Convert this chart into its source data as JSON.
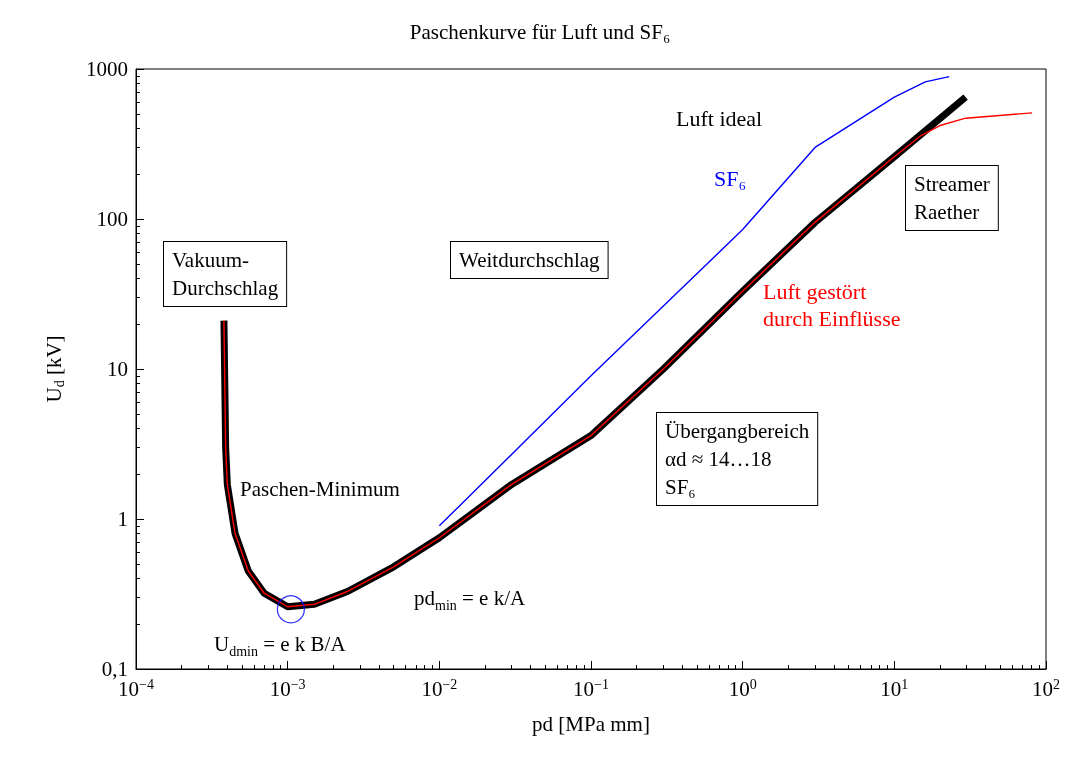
{
  "chart_data": {
    "type": "line",
    "title": "Paschenkurve für Luft und SF₆",
    "xlabel": "pd [MPa mm]",
    "ylabel": "U$_{d}$ [kV]",
    "log": "xy",
    "grid": false,
    "legend": false,
    "marker": "none",
    "line_style": "solid",
    "xlim": [
      0.0001,
      100
    ],
    "ylim": [
      0.1,
      1000
    ],
    "xticks": [
      {
        "value": 0.0001,
        "label": "10$^{−4}$"
      },
      {
        "value": 0.001,
        "label": "10$^{−3}$"
      },
      {
        "value": 0.01,
        "label": "10$^{−2}$"
      },
      {
        "value": 0.1,
        "label": "10$^{−1}$"
      },
      {
        "value": 1,
        "label": "10$^{0}$"
      },
      {
        "value": 10,
        "label": "10$^{1}$"
      },
      {
        "value": 100,
        "label": "10$^{2}$"
      }
    ],
    "yticks": [
      {
        "value": 0.1,
        "label": "0,1"
      },
      1,
      10,
      100,
      1000
    ],
    "series": [
      {
        "name": "Luft ideal",
        "color": "#000000",
        "x": [
          0.00038,
          0.000385,
          0.00039,
          0.0004,
          0.00045,
          0.00055,
          0.0007,
          0.001,
          0.0015,
          0.0025,
          0.005,
          0.01,
          0.03,
          0.1,
          0.3,
          1,
          3,
          10,
          29.5
        ],
        "values": [
          21,
          8,
          3,
          1.7,
          0.8,
          0.45,
          0.32,
          0.26,
          0.27,
          0.33,
          0.48,
          0.75,
          1.7,
          3.6,
          10,
          33,
          95,
          260,
          650
        ]
      },
      {
        "name": "Luft gestört\ndurch Einflüsse",
        "color": "#ff0000",
        "x": [
          0.00038,
          0.000385,
          0.00039,
          0.0004,
          0.00045,
          0.00055,
          0.0007,
          0.001,
          0.0015,
          0.0025,
          0.005,
          0.01,
          0.03,
          0.1,
          0.3,
          1,
          3,
          10,
          15,
          20,
          29.5,
          81
        ],
        "values": [
          21,
          8,
          3,
          1.7,
          0.8,
          0.45,
          0.32,
          0.26,
          0.27,
          0.33,
          0.48,
          0.75,
          1.7,
          3.6,
          10,
          33,
          95,
          260,
          360,
          420,
          470,
          510
        ]
      },
      {
        "name": "SF₆",
        "color": "#0000ff",
        "x": [
          0.01,
          0.1,
          1,
          3,
          10,
          16,
          23
        ],
        "values": [
          0.9,
          9,
          85,
          300,
          650,
          820,
          890
        ]
      },
      {
        "type": "scatter",
        "marker": "circle",
        "color": "#0000ff",
        "x": [
          0.00105
        ],
        "values": [
          0.25
        ]
      }
    ],
    "annotations": [
      "Vakuum-\nDurchschlag",
      "Weitdurchschlag",
      "Streamer\nRaether",
      "Übergangbereich\nαd ≈ 14…18\nSF₆",
      "Paschen-Minimum",
      "pd$_{min}$ = e k/A",
      "U$_{dmin}$ = e k B/A"
    ]
  }
}
